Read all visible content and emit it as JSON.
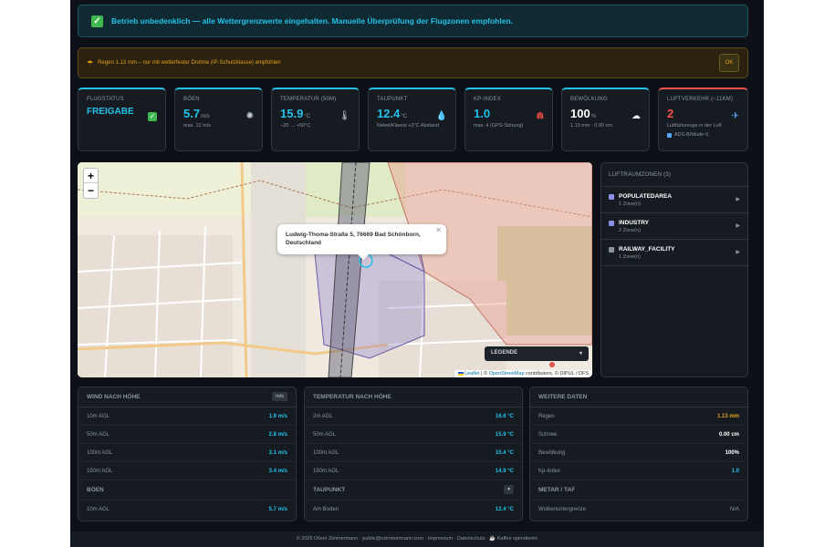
{
  "status_alert": {
    "text": "Betrieb unbedenklich — alle Wettergrenzwerte eingehalten. Manuelle Überprüfung der Flugzonen empfohlen."
  },
  "warning_alert": {
    "text": "Regen 1.13 mm – nur mit wetterfester Drohne (IP-Schutzklasse) empfohlen",
    "button": "OK"
  },
  "cards": {
    "flight": {
      "label": "Flugstatus",
      "value": "FREIGABE"
    },
    "gusts": {
      "label": "Böen",
      "value": "5.7",
      "unit": "m/s",
      "sub": "max. 12 m/s"
    },
    "temp": {
      "label": "Temperatur (50m)",
      "value": "15.9",
      "unit": "°C",
      "sub": "−20 … +50°C"
    },
    "dew": {
      "label": "Taupunkt",
      "value": "12.4",
      "unit": "°C",
      "sub": "Nebel/Klareis +2°C Abstand"
    },
    "kp": {
      "label": "Kp-Index",
      "value": "1.0",
      "sub": "max. 4 (GPS-Störung)"
    },
    "cloud": {
      "label": "Bewölkung",
      "value": "100",
      "unit": "%",
      "sub": "1.13 mm · 0.00 cm"
    },
    "traffic": {
      "label": "Luftverkehr (~11km)",
      "value": "2",
      "sub": "Luftfahrzeuge in der Luft",
      "badge": "ADS-B/Mode-S"
    }
  },
  "map": {
    "popup": "Ludwig-Thoma-Straße 5, 76669 Bad Schönborn, Deutschland",
    "legend": "LEGENDE",
    "attribution_leaflet": "Leaflet",
    "attribution_osm": "OpenStreetMap",
    "attribution_rest": "contributors, © DIPUL / DFS",
    "zoom_in": "+",
    "zoom_out": "−"
  },
  "zones": {
    "title": "LUFTRAUMZONEN (3)",
    "items": [
      {
        "name": "POPULATEDAREA",
        "sub": "1 Zone(n)",
        "color": "#8b8fe8"
      },
      {
        "name": "INDUSTRY",
        "sub": "2 Zone(n)",
        "color": "#8b8fe8"
      },
      {
        "name": "RAILWAY_FACILITY",
        "sub": "1 Zone(n)",
        "color": "#8b949e"
      }
    ]
  },
  "wind": {
    "title": "WIND NACH HÖHE",
    "unit_tag": "m/s",
    "rows": [
      {
        "k": "10m AGL",
        "v": "1.9 m/s"
      },
      {
        "k": "50m AGL",
        "v": "2.8 m/s"
      },
      {
        "k": "100m AGL",
        "v": "3.1 m/s"
      },
      {
        "k": "150m AGL",
        "v": "3.4 m/s"
      }
    ],
    "gust_title": "BÖEN",
    "gust_row": {
      "k": "10m AGL",
      "v": "5.7 m/s"
    }
  },
  "temperature": {
    "title": "TEMPERATUR NACH HÖHE",
    "rows": [
      {
        "k": "2m AGL",
        "v": "16.6 °C"
      },
      {
        "k": "50m AGL",
        "v": "15.9 °C"
      },
      {
        "k": "100m AGL",
        "v": "15.4 °C"
      },
      {
        "k": "150m AGL",
        "v": "14.9 °C"
      }
    ],
    "dew_title": "TAUPUNKT",
    "dew_tag": "▾",
    "dew_row": {
      "k": "Am Boden",
      "v": "12.4 °C"
    }
  },
  "more": {
    "title": "WEITERE DATEN",
    "rows": [
      {
        "k": "Regen",
        "v": "1.13 mm"
      },
      {
        "k": "Schnee",
        "v": "0.00 cm"
      },
      {
        "k": "Bewölkung",
        "v": "100%"
      },
      {
        "k": "Kp-Index",
        "v": "1.0"
      }
    ],
    "metar_title": "METAR / TAF",
    "metar_row": {
      "k": "Wolkenuntergrenze",
      "v": "N/A"
    }
  },
  "footer": "© 2026 Oliver Zimmermann · public@ozimmermann.com · Impressum · Datenschutz · ☕ Kaffee spendieren"
}
